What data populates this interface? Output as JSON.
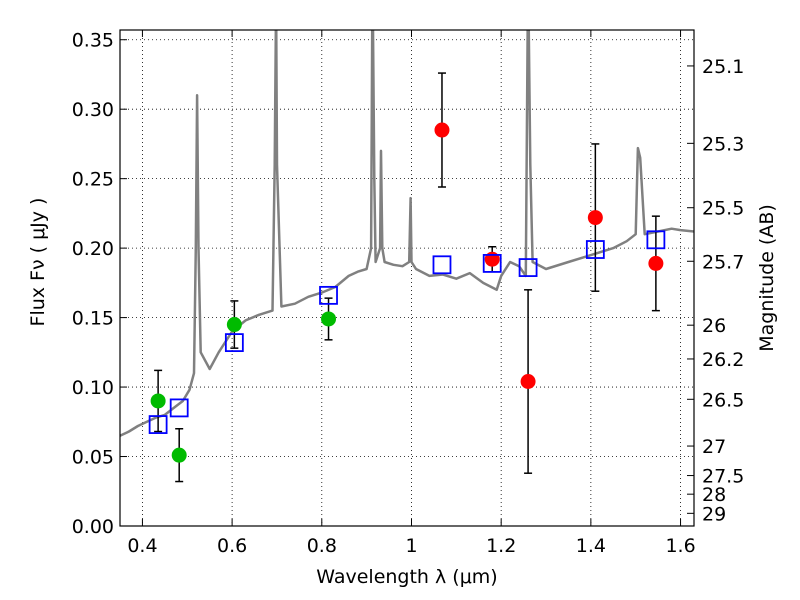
{
  "chart_data": {
    "type": "scatter",
    "xlabel": "Wavelength  λ (μm)",
    "ylabel": "Flux  Fν  ( μJy )",
    "y2label": "Magnitude (AB)",
    "xlim": [
      0.35,
      1.63
    ],
    "ylim": [
      0.0,
      0.357
    ],
    "grid": true,
    "x_ticks": [
      0.4,
      0.6,
      0.8,
      1.0,
      1.2,
      1.4,
      1.6
    ],
    "x_tick_labels": [
      "0.4",
      "0.6",
      "0.8",
      "1",
      "1.2",
      "1.4",
      "1.6"
    ],
    "y_ticks": [
      0.0,
      0.05,
      0.1,
      0.15,
      0.2,
      0.25,
      0.3,
      0.35
    ],
    "y_tick_labels": [
      "0.00",
      "0.05",
      "0.10",
      "0.15",
      "0.20",
      "0.25",
      "0.30",
      "0.35"
    ],
    "magnitude_ticks": [
      {
        "mag": 25.1,
        "label": "25.1"
      },
      {
        "mag": 25.3,
        "label": "25.3"
      },
      {
        "mag": 25.5,
        "label": "25.5"
      },
      {
        "mag": 25.7,
        "label": "25.7"
      },
      {
        "mag": 26.0,
        "label": "26"
      },
      {
        "mag": 26.2,
        "label": "26.2"
      },
      {
        "mag": 26.5,
        "label": "26.5"
      },
      {
        "mag": 27.0,
        "label": "27"
      },
      {
        "mag": 27.5,
        "label": "27.5"
      },
      {
        "mag": 28.0,
        "label": "28"
      },
      {
        "mag": 29.0,
        "label": "29"
      }
    ],
    "series": [
      {
        "name": "model spectrum",
        "kind": "line",
        "color": "#808080",
        "x": [
          0.35,
          0.37,
          0.39,
          0.41,
          0.43,
          0.45,
          0.47,
          0.49,
          0.505,
          0.515,
          0.519,
          0.522,
          0.525,
          0.53,
          0.55,
          0.57,
          0.6,
          0.63,
          0.66,
          0.69,
          0.695,
          0.698,
          0.7,
          0.71,
          0.74,
          0.77,
          0.8,
          0.83,
          0.86,
          0.88,
          0.9,
          0.91,
          0.913,
          0.917,
          0.92,
          0.93,
          0.932,
          0.935,
          0.94,
          0.96,
          0.98,
          0.995,
          0.998,
          1.0,
          1.01,
          1.04,
          1.07,
          1.1,
          1.13,
          1.16,
          1.19,
          1.2,
          1.22,
          1.24,
          1.255,
          1.26,
          1.265,
          1.27,
          1.3,
          1.35,
          1.4,
          1.45,
          1.48,
          1.5,
          1.505,
          1.51,
          1.52,
          1.55,
          1.58,
          1.6,
          1.63
        ],
        "y": [
          0.065,
          0.068,
          0.072,
          0.075,
          0.078,
          0.08,
          0.085,
          0.09,
          0.098,
          0.11,
          0.2,
          0.31,
          0.2,
          0.125,
          0.113,
          0.125,
          0.14,
          0.148,
          0.152,
          0.155,
          0.26,
          0.38,
          0.26,
          0.158,
          0.16,
          0.165,
          0.168,
          0.172,
          0.18,
          0.183,
          0.185,
          0.2,
          0.4,
          0.25,
          0.19,
          0.2,
          0.27,
          0.2,
          0.19,
          0.188,
          0.187,
          0.19,
          0.236,
          0.19,
          0.185,
          0.18,
          0.181,
          0.178,
          0.182,
          0.175,
          0.17,
          0.18,
          0.19,
          0.187,
          0.18,
          0.4,
          0.26,
          0.19,
          0.185,
          0.19,
          0.195,
          0.2,
          0.205,
          0.21,
          0.272,
          0.265,
          0.21,
          0.212,
          0.214,
          0.213,
          0.212
        ]
      },
      {
        "name": "green photometry",
        "kind": "errorbar",
        "color": "#00bb00",
        "points": [
          {
            "x": 0.435,
            "y": 0.09,
            "err": 0.022
          },
          {
            "x": 0.482,
            "y": 0.051,
            "err": 0.019
          },
          {
            "x": 0.605,
            "y": 0.145,
            "err": 0.017
          },
          {
            "x": 0.815,
            "y": 0.149,
            "err": 0.015
          }
        ]
      },
      {
        "name": "red photometry",
        "kind": "errorbar",
        "color": "#ff0000",
        "points": [
          {
            "x": 1.068,
            "y": 0.285,
            "err": 0.041
          },
          {
            "x": 1.18,
            "y": 0.192,
            "err": 0.009
          },
          {
            "x": 1.26,
            "y": 0.104,
            "err": 0.066
          },
          {
            "x": 1.41,
            "y": 0.222,
            "err": 0.053
          },
          {
            "x": 1.545,
            "y": 0.189,
            "err": 0.034
          }
        ]
      },
      {
        "name": "model photometry",
        "kind": "open-square",
        "color": "#0000ff",
        "points": [
          {
            "x": 0.435,
            "y": 0.073
          },
          {
            "x": 0.482,
            "y": 0.085
          },
          {
            "x": 0.605,
            "y": 0.132
          },
          {
            "x": 0.815,
            "y": 0.166
          },
          {
            "x": 1.068,
            "y": 0.188
          },
          {
            "x": 1.18,
            "y": 0.189
          },
          {
            "x": 1.26,
            "y": 0.186
          },
          {
            "x": 1.41,
            "y": 0.199
          },
          {
            "x": 1.545,
            "y": 0.206
          }
        ]
      }
    ]
  }
}
